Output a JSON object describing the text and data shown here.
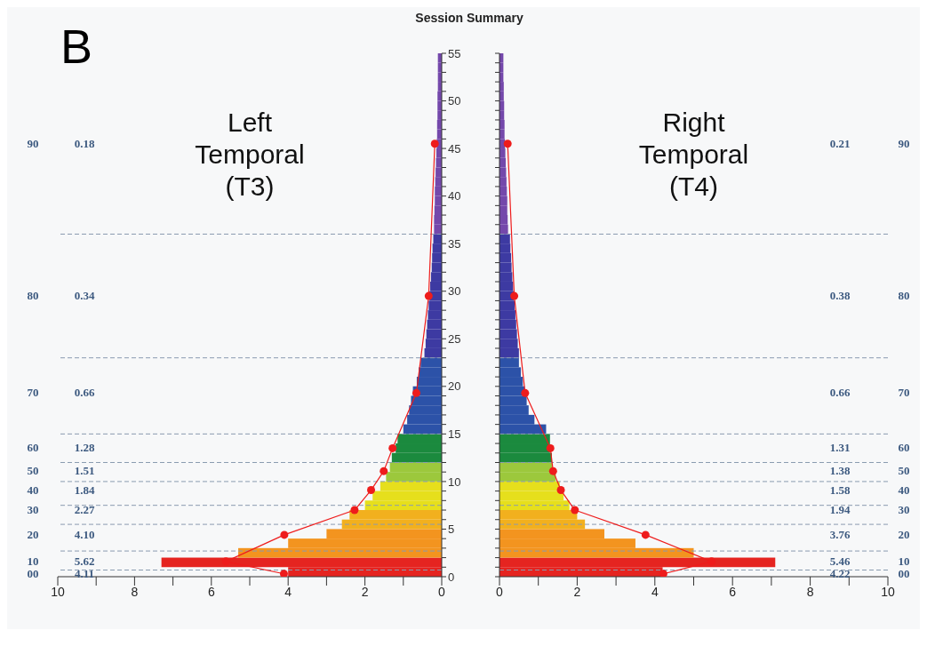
{
  "chart_data": [
    {
      "type": "histogram",
      "orientation": "horizontal",
      "title": "Left Temporal (T3)",
      "marker": "circle",
      "xlim": [
        10,
        0
      ],
      "xticks": [
        0,
        {
          "value": 1,
          "label": null
        },
        2,
        {
          "value": 3,
          "label": null
        },
        4,
        {
          "value": 5,
          "label": null
        },
        6,
        {
          "value": 7,
          "label": null
        },
        8,
        {
          "value": 9,
          "label": null
        },
        10
      ],
      "ylim": [
        0,
        55
      ],
      "yticks": [
        0,
        {
          "value": 1,
          "label": null
        },
        {
          "value": 2,
          "label": null
        },
        {
          "value": 3,
          "label": null
        },
        {
          "value": 4,
          "label": null
        },
        5,
        {
          "value": 6,
          "label": null
        },
        {
          "value": 7,
          "label": null
        },
        {
          "value": 8,
          "label": null
        },
        {
          "value": 9,
          "label": null
        },
        10,
        {
          "value": 11,
          "label": null
        },
        {
          "value": 12,
          "label": null
        },
        {
          "value": 13,
          "label": null
        },
        {
          "value": 14,
          "label": null
        },
        15,
        {
          "value": 16,
          "label": null
        },
        {
          "value": 17,
          "label": null
        },
        {
          "value": 18,
          "label": null
        },
        {
          "value": 19,
          "label": null
        },
        20,
        {
          "value": 21,
          "label": null
        },
        {
          "value": 22,
          "label": null
        },
        {
          "value": 23,
          "label": null
        },
        {
          "value": 24,
          "label": null
        },
        25,
        {
          "value": 26,
          "label": null
        },
        {
          "value": 27,
          "label": null
        },
        {
          "value": 28,
          "label": null
        },
        {
          "value": 29,
          "label": null
        },
        30,
        {
          "value": 31,
          "label": null
        },
        {
          "value": 32,
          "label": null
        },
        {
          "value": 33,
          "label": null
        },
        {
          "value": 34,
          "label": null
        },
        35,
        {
          "value": 36,
          "label": null
        },
        {
          "value": 37,
          "label": null
        },
        {
          "value": 38,
          "label": null
        },
        {
          "value": 39,
          "label": null
        },
        40,
        {
          "value": 41,
          "label": null
        },
        {
          "value": 42,
          "label": null
        },
        {
          "value": 43,
          "label": null
        },
        {
          "value": 44,
          "label": null
        },
        45,
        {
          "value": 46,
          "label": null
        },
        {
          "value": 47,
          "label": null
        },
        {
          "value": 48,
          "label": null
        },
        {
          "value": 49,
          "label": null
        },
        50,
        {
          "value": 51,
          "label": null
        },
        {
          "value": 52,
          "label": null
        },
        {
          "value": 53,
          "label": null
        },
        {
          "value": 54,
          "label": null
        },
        55
      ],
      "series": [
        {
          "bins": [
            0,
            1,
            2,
            3,
            4,
            5,
            6,
            7,
            8,
            9,
            10,
            11,
            12,
            13,
            14,
            15,
            16,
            17,
            18,
            19,
            20,
            21,
            22,
            23,
            24,
            25,
            26,
            27,
            28,
            29,
            30,
            31,
            32,
            33,
            34,
            35,
            36,
            37,
            38,
            39,
            40,
            41,
            42,
            43,
            44,
            45,
            46,
            47,
            48,
            49,
            50,
            51,
            52,
            53,
            54,
            55
          ],
          "values": [
            4.0,
            7.3,
            5.3,
            4.0,
            3.0,
            2.6,
            2.4,
            2.0,
            1.8,
            1.6,
            1.45,
            1.35,
            1.3,
            1.2,
            1.15,
            1.0,
            0.9,
            0.85,
            0.8,
            0.75,
            0.65,
            0.6,
            0.55,
            0.45,
            0.42,
            0.4,
            0.38,
            0.36,
            0.34,
            0.32,
            0.3,
            0.28,
            0.26,
            0.25,
            0.24,
            0.22,
            0.2,
            0.2,
            0.19,
            0.18,
            0.18,
            0.17,
            0.16,
            0.15,
            0.14,
            0.13,
            0.12,
            0.12,
            0.11,
            0.11,
            0.11,
            0.1,
            0.1,
            0.1,
            0.1
          ],
          "colors": [
            "#e52420",
            "#e52420",
            "#f3941f",
            "#f3941f",
            "#f3941f",
            "#f2b01e",
            "#f2b01e",
            "#e6df1c",
            "#e6df1c",
            "#e6df1c",
            "#9cc83c",
            "#9cc83c",
            "#1b8a3e",
            "#1b8a3e",
            "#1b8a3e",
            "#2c52a8",
            "#2c52a8",
            "#2c52a8",
            "#2c52a8",
            "#2c52a8",
            "#2c52a8",
            "#2c52a8",
            "#2c52a8",
            "#3d3aa2",
            "#3d3aa2",
            "#3d3aa2",
            "#3d3aa2",
            "#3d3aa2",
            "#3d3aa2",
            "#3d3aa2",
            "#3d3aa2",
            "#3d3aa2",
            "#3d3aa2",
            "#3d3aa2",
            "#3d3aa2",
            "#3d3aa2",
            "#7448ab",
            "#7448ab",
            "#7448ab",
            "#7448ab",
            "#7448ab",
            "#7448ab",
            "#7448ab",
            "#7448ab",
            "#7448ab",
            "#7448ab",
            "#7448ab",
            "#7448ab",
            "#7448ab",
            "#7448ab",
            "#7448ab",
            "#7448ab",
            "#7448ab",
            "#7448ab",
            "#7448ab"
          ]
        },
        {
          "type": "line",
          "color": "#ee1c1c",
          "x": [
            0.3,
            1.6,
            4.4,
            7.0,
            9.1,
            11.1,
            13.5,
            19.3,
            29.5,
            45.5
          ],
          "values": [
            4.11,
            5.62,
            4.1,
            2.27,
            1.84,
            1.51,
            1.28,
            0.66,
            0.34,
            0.18
          ]
        }
      ],
      "ref_lines": [
        {
          "axis": "y",
          "value": 0.7,
          "color": "#8a9bb0",
          "line_style": "dashed"
        },
        {
          "axis": "y",
          "value": 2.7,
          "color": "#8a9bb0",
          "line_style": "dashed"
        },
        {
          "axis": "y",
          "value": 5.5,
          "color": "#8a9bb0",
          "line_style": "dashed"
        },
        {
          "axis": "y",
          "value": 7.5,
          "color": "#8a9bb0",
          "line_style": "dashed"
        },
        {
          "axis": "y",
          "value": 10,
          "color": "#8a9bb0",
          "line_style": "dashed"
        },
        {
          "axis": "y",
          "value": 12,
          "color": "#8a9bb0",
          "line_style": "dashed"
        },
        {
          "axis": "y",
          "value": 15,
          "color": "#8a9bb0",
          "line_style": "dashed"
        },
        {
          "axis": "y",
          "value": 23,
          "color": "#8a9bb0",
          "line_style": "dashed"
        },
        {
          "axis": "y",
          "value": 36,
          "color": "#8a9bb0",
          "line_style": "dashed"
        }
      ],
      "annotations": [
        "Session Summary",
        "B",
        "00",
        "4.11",
        "10",
        "5.62",
        "20",
        "4.10",
        "30",
        "2.27",
        "40",
        "1.84",
        "50",
        "1.51",
        "60",
        "1.28",
        "70",
        "0.66",
        "80",
        "0.34",
        "90",
        "0.18"
      ]
    },
    {
      "type": "histogram",
      "orientation": "horizontal",
      "title": "Right Temporal (T4)",
      "marker": "circle",
      "tick_labels": "x",
      "xlim": [
        0,
        10
      ],
      "xticks": [
        0,
        {
          "value": 1,
          "label": null
        },
        2,
        {
          "value": 3,
          "label": null
        },
        4,
        {
          "value": 5,
          "label": null
        },
        6,
        {
          "value": 7,
          "label": null
        },
        8,
        {
          "value": 9,
          "label": null
        },
        10
      ],
      "ylim": [
        0,
        55
      ],
      "yticks": [
        0,
        {
          "value": 1,
          "label": null
        },
        {
          "value": 2,
          "label": null
        },
        {
          "value": 3,
          "label": null
        },
        {
          "value": 4,
          "label": null
        },
        5,
        {
          "value": 6,
          "label": null
        },
        {
          "value": 7,
          "label": null
        },
        {
          "value": 8,
          "label": null
        },
        {
          "value": 9,
          "label": null
        },
        10,
        {
          "value": 11,
          "label": null
        },
        {
          "value": 12,
          "label": null
        },
        {
          "value": 13,
          "label": null
        },
        {
          "value": 14,
          "label": null
        },
        15,
        {
          "value": 16,
          "label": null
        },
        {
          "value": 17,
          "label": null
        },
        {
          "value": 18,
          "label": null
        },
        {
          "value": 19,
          "label": null
        },
        20,
        {
          "value": 21,
          "label": null
        },
        {
          "value": 22,
          "label": null
        },
        {
          "value": 23,
          "label": null
        },
        {
          "value": 24,
          "label": null
        },
        25,
        {
          "value": 26,
          "label": null
        },
        {
          "value": 27,
          "label": null
        },
        {
          "value": 28,
          "label": null
        },
        {
          "value": 29,
          "label": null
        },
        30,
        {
          "value": 31,
          "label": null
        },
        {
          "value": 32,
          "label": null
        },
        {
          "value": 33,
          "label": null
        },
        {
          "value": 34,
          "label": null
        },
        35,
        {
          "value": 36,
          "label": null
        },
        {
          "value": 37,
          "label": null
        },
        {
          "value": 38,
          "label": null
        },
        {
          "value": 39,
          "label": null
        },
        40,
        {
          "value": 41,
          "label": null
        },
        {
          "value": 42,
          "label": null
        },
        {
          "value": 43,
          "label": null
        },
        {
          "value": 44,
          "label": null
        },
        45,
        {
          "value": 46,
          "label": null
        },
        {
          "value": 47,
          "label": null
        },
        {
          "value": 48,
          "label": null
        },
        {
          "value": 49,
          "label": null
        },
        50,
        {
          "value": 51,
          "label": null
        },
        {
          "value": 52,
          "label": null
        },
        {
          "value": 53,
          "label": null
        },
        {
          "value": 54,
          "label": null
        },
        55
      ],
      "series": [
        {
          "bins": [
            0,
            1,
            2,
            3,
            4,
            5,
            6,
            7,
            8,
            9,
            10,
            11,
            12,
            13,
            14,
            15,
            16,
            17,
            18,
            19,
            20,
            21,
            22,
            23,
            24,
            25,
            26,
            27,
            28,
            29,
            30,
            31,
            32,
            33,
            34,
            35,
            36,
            37,
            38,
            39,
            40,
            41,
            42,
            43,
            44,
            45,
            46,
            47,
            48,
            49,
            50,
            51,
            52,
            53,
            54,
            55
          ],
          "values": [
            4.2,
            7.1,
            5.0,
            3.5,
            2.7,
            2.2,
            2.0,
            1.8,
            1.65,
            1.55,
            1.45,
            1.35,
            1.35,
            1.3,
            1.3,
            1.2,
            0.9,
            0.75,
            0.7,
            0.65,
            0.6,
            0.55,
            0.5,
            0.5,
            0.47,
            0.45,
            0.43,
            0.41,
            0.39,
            0.37,
            0.35,
            0.33,
            0.31,
            0.3,
            0.28,
            0.27,
            0.22,
            0.21,
            0.2,
            0.2,
            0.19,
            0.18,
            0.17,
            0.16,
            0.15,
            0.14,
            0.13,
            0.13,
            0.12,
            0.12,
            0.11,
            0.11,
            0.1,
            0.1,
            0.1
          ],
          "colors": [
            "#e52420",
            "#e52420",
            "#f3941f",
            "#f3941f",
            "#f3941f",
            "#f2b01e",
            "#f2b01e",
            "#e6df1c",
            "#e6df1c",
            "#e6df1c",
            "#9cc83c",
            "#9cc83c",
            "#1b8a3e",
            "#1b8a3e",
            "#1b8a3e",
            "#2c52a8",
            "#2c52a8",
            "#2c52a8",
            "#2c52a8",
            "#2c52a8",
            "#2c52a8",
            "#2c52a8",
            "#2c52a8",
            "#3d3aa2",
            "#3d3aa2",
            "#3d3aa2",
            "#3d3aa2",
            "#3d3aa2",
            "#3d3aa2",
            "#3d3aa2",
            "#3d3aa2",
            "#3d3aa2",
            "#3d3aa2",
            "#3d3aa2",
            "#3d3aa2",
            "#3d3aa2",
            "#7448ab",
            "#7448ab",
            "#7448ab",
            "#7448ab",
            "#7448ab",
            "#7448ab",
            "#7448ab",
            "#7448ab",
            "#7448ab",
            "#7448ab",
            "#7448ab",
            "#7448ab",
            "#7448ab",
            "#7448ab",
            "#7448ab",
            "#7448ab",
            "#7448ab",
            "#7448ab",
            "#7448ab"
          ]
        },
        {
          "type": "line",
          "color": "#ee1c1c",
          "x": [
            0.3,
            1.6,
            4.4,
            7.0,
            9.1,
            11.1,
            13.5,
            19.3,
            29.5,
            45.5
          ],
          "values": [
            4.22,
            5.46,
            3.76,
            1.94,
            1.58,
            1.38,
            1.31,
            0.66,
            0.38,
            0.21
          ]
        }
      ],
      "ref_lines": [
        {
          "axis": "y",
          "value": 0.7,
          "color": "#8a9bb0",
          "line_style": "dashed"
        },
        {
          "axis": "y",
          "value": 2.7,
          "color": "#8a9bb0",
          "line_style": "dashed"
        },
        {
          "axis": "y",
          "value": 5.5,
          "color": "#8a9bb0",
          "line_style": "dashed"
        },
        {
          "axis": "y",
          "value": 7.5,
          "color": "#8a9bb0",
          "line_style": "dashed"
        },
        {
          "axis": "y",
          "value": 10,
          "color": "#8a9bb0",
          "line_style": "dashed"
        },
        {
          "axis": "y",
          "value": 12,
          "color": "#8a9bb0",
          "line_style": "dashed"
        },
        {
          "axis": "y",
          "value": 15,
          "color": "#8a9bb0",
          "line_style": "dashed"
        },
        {
          "axis": "y",
          "value": 23,
          "color": "#8a9bb0",
          "line_style": "dashed"
        },
        {
          "axis": "y",
          "value": 36,
          "color": "#8a9bb0",
          "line_style": "dashed"
        }
      ],
      "annotations": [
        "00",
        "4.22",
        "10",
        "5.46",
        "20",
        "3.76",
        "30",
        "1.94",
        "40",
        "1.58",
        "50",
        "1.38",
        "60",
        "1.31",
        "70",
        "0.66",
        "80",
        "0.38",
        "90",
        "0.21"
      ]
    }
  ]
}
